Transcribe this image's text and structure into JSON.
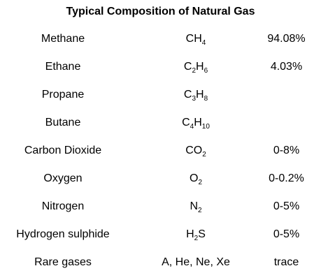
{
  "title": "Typical Composition of Natural Gas",
  "rows": [
    {
      "name": "Methane",
      "formula": [
        [
          "CH",
          ""
        ],
        [
          "4",
          "sub"
        ]
      ],
      "value": "94.08%"
    },
    {
      "name": "Ethane",
      "formula": [
        [
          "C",
          ""
        ],
        [
          "2",
          "sub"
        ],
        [
          "H",
          ""
        ],
        [
          "6",
          "sub"
        ]
      ],
      "value": "4.03%"
    },
    {
      "name": "Propane",
      "formula": [
        [
          "C",
          ""
        ],
        [
          "3",
          "sub"
        ],
        [
          "H",
          ""
        ],
        [
          "8",
          "sub"
        ]
      ],
      "value": ""
    },
    {
      "name": "Butane",
      "formula": [
        [
          "C",
          ""
        ],
        [
          "4",
          "sub"
        ],
        [
          "H",
          ""
        ],
        [
          "10",
          "sub"
        ]
      ],
      "value": ""
    },
    {
      "name": "Carbon Dioxide",
      "formula": [
        [
          "CO",
          ""
        ],
        [
          "2",
          "sub"
        ]
      ],
      "value": "0-8%"
    },
    {
      "name": "Oxygen",
      "formula": [
        [
          "O",
          ""
        ],
        [
          "2",
          "sub"
        ]
      ],
      "value": "0-0.2%"
    },
    {
      "name": "Nitrogen",
      "formula": [
        [
          "N",
          ""
        ],
        [
          "2",
          "sub"
        ]
      ],
      "value": "0-5%"
    },
    {
      "name": "Hydrogen sulphide",
      "formula": [
        [
          "H",
          ""
        ],
        [
          "2",
          "sub"
        ],
        [
          "S",
          ""
        ]
      ],
      "value": "0-5%"
    },
    {
      "name": "Rare gases",
      "formula": [
        [
          "A, He, Ne, Xe",
          ""
        ]
      ],
      "value": "trace"
    }
  ]
}
